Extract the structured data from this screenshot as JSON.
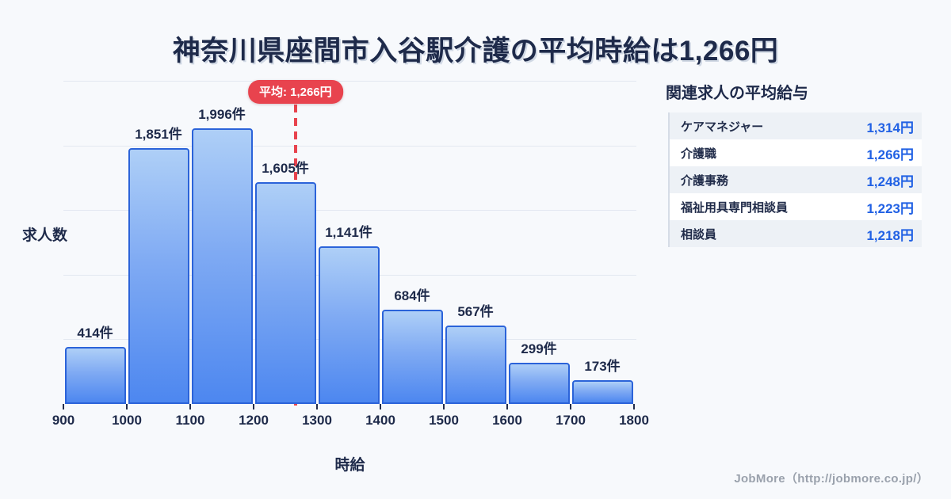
{
  "page": {
    "title": "神奈川県座間市入谷駅介護の平均時給は1,266円",
    "footer": "JobMore（http://jobmore.co.jp/）",
    "background_color": "#f7f9fc",
    "title_color": "#1e2a4a"
  },
  "chart_data": {
    "type": "bar",
    "title": "神奈川県座間市入谷駅介護の平均時給は1,266円",
    "xlabel": "時給",
    "ylabel": "求人数",
    "bin_edges": [
      900,
      1000,
      1100,
      1200,
      1300,
      1400,
      1500,
      1600,
      1700,
      1800
    ],
    "x_tick_labels": [
      "900",
      "1000",
      "1100",
      "1200",
      "1300",
      "1400",
      "1500",
      "1600",
      "1700",
      "1800"
    ],
    "values": [
      414,
      1851,
      1996,
      1605,
      1141,
      684,
      567,
      299,
      173
    ],
    "bar_labels": [
      "414件",
      "1,851件",
      "1,996件",
      "1,605件",
      "1,141件",
      "684件",
      "567件",
      "299件",
      "173件"
    ],
    "average": {
      "value": 1266,
      "label": "平均: 1,266円"
    },
    "ylim": [
      0,
      2340
    ],
    "grid": true,
    "gridline_count": 5,
    "colors": {
      "bar_fill_top": "#aecff7",
      "bar_fill_bottom": "#4d87f0",
      "bar_border": "#2b63d9",
      "average_accent": "#e8434e",
      "gridline": "#e3e8f1",
      "text": "#1e2a4a"
    }
  },
  "side_panel": {
    "title": "関連求人の平均給与",
    "rows": [
      {
        "label": "ケアマネジャー",
        "value": "1,314円"
      },
      {
        "label": "介護職",
        "value": "1,266円"
      },
      {
        "label": "介護事務",
        "value": "1,248円"
      },
      {
        "label": "福祉用具専門相談員",
        "value": "1,223円"
      },
      {
        "label": "相談員",
        "value": "1,218円"
      }
    ]
  }
}
